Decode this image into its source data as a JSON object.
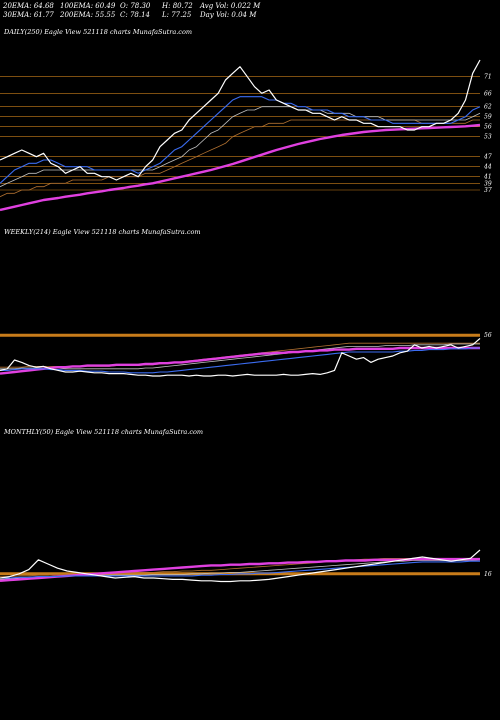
{
  "stats": {
    "ema20": "20EMA: 64.68",
    "ema100": "100EMA: 60.49",
    "open": "O: 78.30",
    "high": "H: 80.72",
    "avgvol": "Avg Vol: 0.022  M",
    "ema30": "30EMA: 61.77",
    "ema200": "200EMA: 55.55",
    "close": "C: 78.14",
    "low": "L: 77.25",
    "dayvol": "Day Vol: 0.04  M"
  },
  "colors": {
    "background": "#000000",
    "price": "#ffffff",
    "ema_short": "#3b6cf0",
    "ema_mid": "#c0c0c0",
    "ema_long": "#b07030",
    "ema_200": "#e040e0",
    "grid": "#c87c1a"
  },
  "chart_data": [
    {
      "type": "line",
      "title": "DAILY(250) Eagle  View  521118 charts MunafaSutra.com",
      "ylim": [
        28,
        82
      ],
      "price_levels": [
        71,
        66,
        62,
        59,
        56,
        53,
        47,
        44,
        41,
        39,
        37
      ],
      "level_labels": [
        "71",
        "66",
        "62",
        "59",
        "56",
        "53",
        "47",
        "44",
        "41",
        "39",
        "37"
      ],
      "series": [
        {
          "key": "price",
          "values": [
            46,
            47,
            48,
            49,
            48,
            47,
            48,
            45,
            44,
            42,
            43,
            44,
            42,
            42,
            41,
            41,
            40,
            41,
            42,
            41,
            44,
            46,
            50,
            52,
            54,
            55,
            58,
            60,
            62,
            64,
            66,
            70,
            72,
            74,
            71,
            68,
            66,
            67,
            64,
            63,
            62,
            61,
            61,
            60,
            60,
            59,
            58,
            59,
            58,
            58,
            57,
            57,
            56,
            56,
            56,
            56,
            55,
            55,
            56,
            56,
            57,
            57,
            58,
            60,
            64,
            72,
            76
          ]
        },
        {
          "key": "ema_short",
          "values": [
            39,
            41,
            43,
            44,
            45,
            45,
            46,
            46,
            45,
            44,
            44,
            44,
            44,
            43,
            43,
            43,
            43,
            43,
            43,
            42,
            43,
            44,
            45,
            47,
            49,
            50,
            52,
            54,
            56,
            58,
            60,
            62,
            64,
            65,
            65,
            65,
            65,
            64,
            64,
            63,
            63,
            62,
            62,
            61,
            61,
            61,
            60,
            60,
            59,
            59,
            59,
            58,
            58,
            58,
            57,
            57,
            57,
            57,
            57,
            57,
            57,
            57,
            57,
            58,
            59,
            61,
            62
          ]
        },
        {
          "key": "ema_mid",
          "values": [
            38,
            39,
            40,
            41,
            42,
            42,
            43,
            43,
            43,
            43,
            43,
            43,
            43,
            43,
            43,
            43,
            43,
            43,
            43,
            43,
            43,
            43,
            44,
            45,
            46,
            47,
            49,
            50,
            52,
            54,
            55,
            57,
            59,
            60,
            61,
            61,
            62,
            62,
            62,
            62,
            62,
            61,
            61,
            61,
            61,
            60,
            60,
            60,
            60,
            59,
            59,
            59,
            59,
            58,
            58,
            58,
            58,
            58,
            58,
            58,
            58,
            58,
            58,
            58,
            58,
            59,
            60
          ]
        },
        {
          "key": "ema_long",
          "values": [
            35,
            36,
            36,
            37,
            37,
            38,
            38,
            39,
            39,
            39,
            40,
            40,
            40,
            40,
            40,
            41,
            41,
            41,
            41,
            41,
            42,
            42,
            42,
            43,
            44,
            45,
            46,
            47,
            48,
            49,
            50,
            51,
            53,
            54,
            55,
            56,
            56,
            57,
            57,
            57,
            58,
            58,
            58,
            58,
            58,
            58,
            58,
            58,
            58,
            58,
            58,
            58,
            58,
            58,
            58,
            58,
            58,
            58,
            57,
            57,
            57,
            57,
            57,
            57,
            57,
            58,
            58
          ]
        },
        {
          "key": "ema_200",
          "values": [
            31,
            31.5,
            32,
            32.5,
            33,
            33.5,
            34,
            34.3,
            34.6,
            35,
            35.3,
            35.6,
            36,
            36.3,
            36.6,
            37,
            37.3,
            37.6,
            38,
            38.3,
            38.7,
            39,
            39.5,
            40,
            40.5,
            41,
            41.5,
            42,
            42.5,
            43,
            43.6,
            44.2,
            44.8,
            45.5,
            46.2,
            46.9,
            47.6,
            48.3,
            49,
            49.6,
            50.2,
            50.8,
            51.3,
            51.8,
            52.3,
            52.7,
            53.1,
            53.5,
            53.8,
            54.1,
            54.4,
            54.6,
            54.8,
            55,
            55.1,
            55.2,
            55.3,
            55.4,
            55.5,
            55.6,
            55.7,
            55.8,
            55.9,
            56,
            56.1,
            56.3,
            56.5
          ]
        }
      ]
    },
    {
      "type": "line",
      "title": "WEEKLY(214) Eagle  View  521118 charts MunafaSutra.com",
      "ylim": [
        0,
        100
      ],
      "price_levels": [
        56
      ],
      "level_labels": [
        "56"
      ],
      "series": [
        {
          "key": "price",
          "values": [
            12,
            14,
            25,
            22,
            18,
            16,
            17,
            14,
            12,
            10,
            10,
            11,
            10,
            9,
            9,
            8,
            8,
            8,
            7,
            6,
            6,
            5,
            5,
            6,
            6,
            6,
            5,
            6,
            5,
            5,
            6,
            6,
            5,
            6,
            7,
            6,
            6,
            6,
            6,
            7,
            6,
            6,
            7,
            8,
            7,
            9,
            12,
            34,
            30,
            26,
            28,
            22,
            26,
            28,
            30,
            34,
            36,
            44,
            40,
            42,
            40,
            42,
            44,
            40,
            42,
            44,
            52
          ]
        },
        {
          "key": "ema_short",
          "values": [
            12,
            12,
            13,
            14,
            14,
            14,
            14,
            13,
            13,
            12,
            12,
            12,
            11,
            11,
            11,
            10,
            10,
            10,
            9,
            9,
            9,
            9,
            10,
            10,
            11,
            12,
            13,
            14,
            15,
            16,
            17,
            18,
            19,
            20,
            21,
            22,
            23,
            24,
            25,
            26,
            27,
            28,
            29,
            30,
            31,
            32,
            33,
            34,
            35,
            35,
            35,
            35,
            35,
            35,
            35,
            36,
            36,
            37,
            37,
            38,
            38,
            38,
            39,
            39,
            39,
            40,
            40
          ]
        },
        {
          "key": "ema_mid",
          "values": [
            14,
            14,
            14,
            15,
            15,
            15,
            15,
            15,
            15,
            14,
            14,
            14,
            14,
            14,
            14,
            14,
            14,
            14,
            14,
            14,
            15,
            15,
            16,
            17,
            18,
            19,
            20,
            21,
            22,
            23,
            24,
            25,
            26,
            27,
            28,
            29,
            30,
            31,
            32,
            33,
            34,
            35,
            36,
            37,
            38,
            39,
            40,
            41,
            42,
            42,
            42,
            42,
            42,
            43,
            43,
            43,
            43,
            44,
            44,
            44,
            44,
            44,
            45,
            45,
            45,
            45,
            45
          ]
        },
        {
          "key": "ema_long",
          "values": [
            16,
            16,
            16,
            16,
            17,
            17,
            17,
            17,
            17,
            17,
            17,
            17,
            17,
            17,
            17,
            17,
            18,
            18,
            18,
            18,
            19,
            19,
            20,
            21,
            22,
            23,
            24,
            25,
            26,
            27,
            28,
            29,
            30,
            31,
            32,
            33,
            34,
            35,
            36,
            37,
            38,
            39,
            40,
            41,
            42,
            43,
            44,
            45,
            46,
            46,
            46,
            46,
            46,
            46,
            46,
            46,
            46,
            46,
            46,
            46,
            46,
            46,
            46,
            46,
            46,
            46,
            46
          ]
        },
        {
          "key": "ema_200",
          "values": [
            8,
            9,
            10,
            11,
            12,
            13,
            14,
            15,
            16,
            16,
            17,
            17,
            18,
            18,
            18,
            18,
            19,
            19,
            19,
            19,
            20,
            20,
            21,
            21,
            22,
            22,
            23,
            24,
            25,
            26,
            27,
            28,
            29,
            30,
            31,
            32,
            33,
            33,
            34,
            34,
            35,
            35,
            36,
            36,
            37,
            37,
            38,
            38,
            38,
            39,
            39,
            39,
            39,
            39,
            39,
            40,
            40,
            40,
            40,
            40,
            40,
            40,
            40,
            40,
            40,
            40,
            40
          ]
        }
      ]
    },
    {
      "type": "line",
      "title": "MONTHLY(50) Eagle  View  521118 charts MunafaSutra.com",
      "ylim": [
        0,
        100
      ],
      "price_levels": [
        16
      ],
      "level_labels": [
        "16"
      ],
      "series": [
        {
          "key": "price",
          "values": [
            10,
            12,
            16,
            22,
            36,
            30,
            24,
            20,
            18,
            16,
            14,
            12,
            10,
            11,
            12,
            10,
            10,
            9,
            8,
            8,
            7,
            6,
            6,
            5,
            5,
            6,
            6,
            7,
            8,
            10,
            12,
            14,
            16,
            18,
            20,
            22,
            24,
            26,
            28,
            30,
            32,
            34,
            36,
            38,
            40,
            38,
            36,
            34,
            36,
            38,
            50
          ]
        },
        {
          "key": "ema_short",
          "values": [
            10,
            10,
            11,
            11,
            12,
            12,
            12,
            13,
            13,
            13,
            13,
            13,
            13,
            13,
            13,
            13,
            13,
            13,
            13,
            13,
            13,
            14,
            14,
            15,
            15,
            16,
            16,
            17,
            17,
            18,
            19,
            20,
            21,
            22,
            23,
            24,
            25,
            26,
            27,
            28,
            29,
            30,
            31,
            32,
            33,
            33,
            33,
            33,
            33,
            34,
            34
          ]
        },
        {
          "key": "ema_mid",
          "values": [
            8,
            9,
            10,
            11,
            12,
            12,
            13,
            13,
            14,
            14,
            14,
            14,
            14,
            14,
            14,
            14,
            15,
            15,
            15,
            15,
            16,
            16,
            17,
            17,
            18,
            18,
            19,
            20,
            21,
            22,
            23,
            24,
            25,
            26,
            27,
            28,
            29,
            30,
            31,
            32,
            33,
            34,
            34,
            35,
            35,
            35,
            35,
            35,
            35,
            35,
            36
          ]
        },
        {
          "key": "ema_long",
          "values": [
            12,
            12,
            13,
            13,
            14,
            14,
            15,
            15,
            16,
            16,
            16,
            17,
            17,
            17,
            18,
            18,
            18,
            19,
            19,
            20,
            20,
            21,
            21,
            22,
            23,
            24,
            25,
            26,
            27,
            28,
            29,
            30,
            31,
            32,
            33,
            34,
            35,
            36,
            37,
            37,
            38,
            38,
            38,
            38,
            38,
            38,
            38,
            38,
            38,
            38,
            38
          ]
        },
        {
          "key": "ema_200",
          "values": [
            6,
            7,
            8,
            9,
            10,
            11,
            12,
            13,
            14,
            15,
            16,
            17,
            18,
            19,
            20,
            21,
            22,
            23,
            24,
            25,
            26,
            27,
            28,
            28,
            29,
            29,
            30,
            30,
            31,
            31,
            32,
            32,
            33,
            33,
            34,
            34,
            35,
            35,
            35,
            36,
            36,
            36,
            36,
            37,
            37,
            37,
            37,
            37,
            37,
            37,
            37
          ]
        }
      ]
    }
  ]
}
